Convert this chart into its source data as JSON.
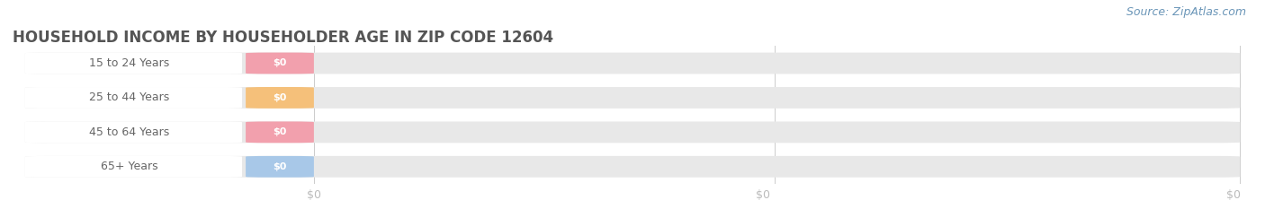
{
  "title": "HOUSEHOLD INCOME BY HOUSEHOLDER AGE IN ZIP CODE 12604",
  "source_text": "Source: ZipAtlas.com",
  "categories": [
    "15 to 24 Years",
    "25 to 44 Years",
    "45 to 64 Years",
    "65+ Years"
  ],
  "values": [
    0,
    0,
    0,
    0
  ],
  "bar_colors": [
    "#f2a0ad",
    "#f5c07a",
    "#f2a0ad",
    "#a8c8e8"
  ],
  "row_bg_colors": [
    "#ebebeb",
    "#f5f5f5",
    "#ebebeb",
    "#f5f5f5"
  ],
  "bar_track_color": "#e8e8e8",
  "fig_bg_color": "#ffffff",
  "title_color": "#555555",
  "source_color": "#6b96b8",
  "tick_color": "#bbbbbb",
  "label_color": "#666666",
  "value_label_color": "#ffffff",
  "title_fontsize": 12,
  "label_fontsize": 9,
  "value_fontsize": 8,
  "source_fontsize": 9,
  "tick_fontsize": 9,
  "figsize": [
    14.06,
    2.33
  ],
  "dpi": 100
}
